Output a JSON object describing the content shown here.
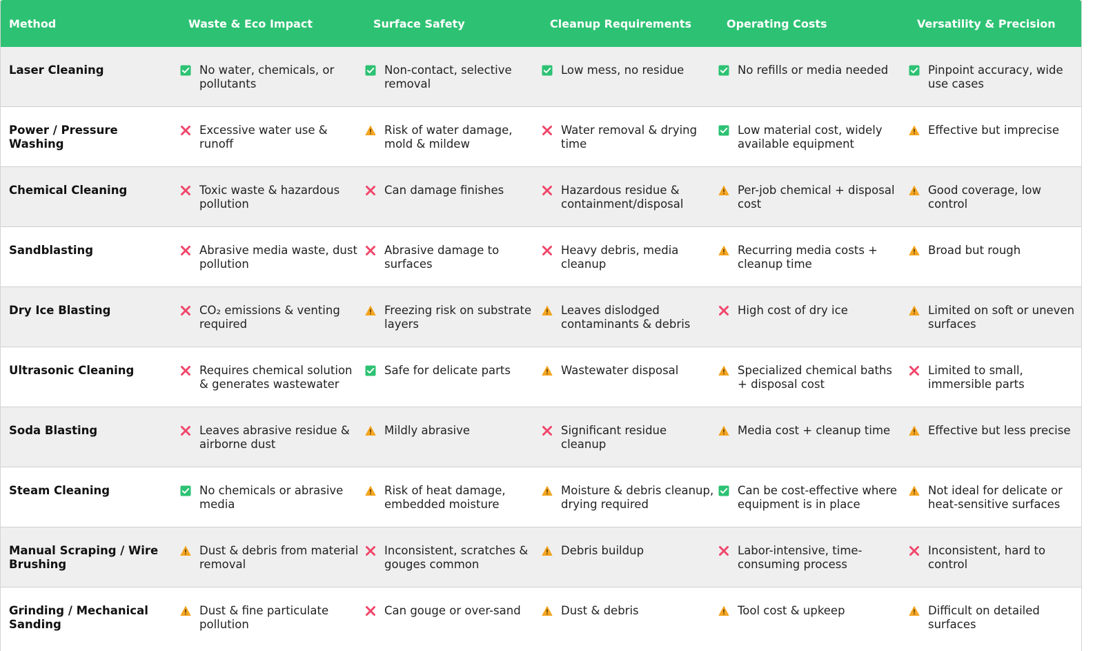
{
  "header": [
    "Method",
    "Waste & Eco Impact",
    "Surface Safety",
    "Cleanup Requirements",
    "Operating Costs",
    "Versatility & Precision"
  ],
  "icons": {
    "check": {
      "name": "check-icon",
      "color": "#2dc273"
    },
    "cross": {
      "name": "cross-icon",
      "color": "#f0466a"
    },
    "warning": {
      "name": "warning-icon",
      "color": "#f5a623"
    }
  },
  "rows": [
    {
      "method": "Laser Cleaning",
      "cells": [
        {
          "icon": "check",
          "text": "No water, chemicals, or pollutants"
        },
        {
          "icon": "check",
          "text": "Non-contact, selective removal"
        },
        {
          "icon": "check",
          "text": "Low mess, no residue"
        },
        {
          "icon": "check",
          "text": "No refills or media needed"
        },
        {
          "icon": "check",
          "text": "Pinpoint accuracy, wide use cases"
        }
      ]
    },
    {
      "method": "Power / Pressure Washing",
      "cells": [
        {
          "icon": "cross",
          "text": "Excessive water use & runoff"
        },
        {
          "icon": "warning",
          "text": "Risk of water damage, mold & mildew"
        },
        {
          "icon": "cross",
          "text": "Water removal & drying time"
        },
        {
          "icon": "check",
          "text": "Low material cost, widely available equipment"
        },
        {
          "icon": "warning",
          "text": "Effective but imprecise"
        }
      ]
    },
    {
      "method": "Chemical Cleaning",
      "cells": [
        {
          "icon": "cross",
          "text": "Toxic waste & hazardous pollution"
        },
        {
          "icon": "cross",
          "text": "Can damage finishes"
        },
        {
          "icon": "cross",
          "text": "Hazardous residue & containment/disposal"
        },
        {
          "icon": "warning",
          "text": "Per-job chemical + disposal cost"
        },
        {
          "icon": "warning",
          "text": "Good coverage, low control"
        }
      ]
    },
    {
      "method": "Sandblasting",
      "cells": [
        {
          "icon": "cross",
          "text": "Abrasive media waste, dust pollution"
        },
        {
          "icon": "cross",
          "text": "Abrasive damage to surfaces"
        },
        {
          "icon": "cross",
          "text": "Heavy debris, media cleanup"
        },
        {
          "icon": "warning",
          "text": "Recurring media costs + cleanup time"
        },
        {
          "icon": "warning",
          "text": "Broad but rough"
        }
      ]
    },
    {
      "method": "Dry Ice Blasting",
      "cells": [
        {
          "icon": "cross",
          "text": "CO₂ emissions & venting required"
        },
        {
          "icon": "warning",
          "text": "Freezing risk on substrate layers"
        },
        {
          "icon": "warning",
          "text": "Leaves dislodged contaminants & debris"
        },
        {
          "icon": "cross",
          "text": "High cost of dry ice"
        },
        {
          "icon": "warning",
          "text": "Limited on soft or uneven surfaces"
        }
      ]
    },
    {
      "method": "Ultrasonic Cleaning",
      "cells": [
        {
          "icon": "cross",
          "text": "Requires chemical solution & generates wastewater"
        },
        {
          "icon": "check",
          "text": "Safe for delicate parts"
        },
        {
          "icon": "warning",
          "text": "Wastewater disposal"
        },
        {
          "icon": "warning",
          "text": "Specialized chemical baths + disposal cost"
        },
        {
          "icon": "cross",
          "text": "Limited to small, immersible parts"
        }
      ]
    },
    {
      "method": "Soda Blasting",
      "cells": [
        {
          "icon": "cross",
          "text": "Leaves abrasive residue & airborne dust"
        },
        {
          "icon": "warning",
          "text": "Mildly abrasive"
        },
        {
          "icon": "cross",
          "text": "Significant residue cleanup"
        },
        {
          "icon": "warning",
          "text": "Media cost + cleanup time"
        },
        {
          "icon": "warning",
          "text": "Effective but less precise"
        }
      ]
    },
    {
      "method": "Steam Cleaning",
      "cells": [
        {
          "icon": "check",
          "text": "No chemicals or abrasive media"
        },
        {
          "icon": "warning",
          "text": "Risk of heat damage, embedded moisture"
        },
        {
          "icon": "warning",
          "text": "Moisture & debris cleanup, drying required"
        },
        {
          "icon": "check",
          "text": "Can be cost-effective where equipment is in place"
        },
        {
          "icon": "warning",
          "text": "Not ideal for delicate or heat-sensitive surfaces"
        }
      ]
    },
    {
      "method": "Manual Scraping / Wire Brushing",
      "cells": [
        {
          "icon": "warning",
          "text": "Dust & debris from material removal"
        },
        {
          "icon": "cross",
          "text": "Inconsistent, scratches & gouges common"
        },
        {
          "icon": "warning",
          "text": "Debris buildup"
        },
        {
          "icon": "cross",
          "text": "Labor-intensive, time-consuming process"
        },
        {
          "icon": "cross",
          "text": "Inconsistent, hard to control"
        }
      ]
    },
    {
      "method": "Grinding / Mechanical Sanding",
      "cells": [
        {
          "icon": "warning",
          "text": "Dust & fine particulate pollution"
        },
        {
          "icon": "cross",
          "text": "Can gouge or over-sand"
        },
        {
          "icon": "warning",
          "text": "Dust & debris"
        },
        {
          "icon": "warning",
          "text": "Tool cost & upkeep"
        },
        {
          "icon": "warning",
          "text": "Difficult on detailed surfaces"
        }
      ]
    }
  ]
}
